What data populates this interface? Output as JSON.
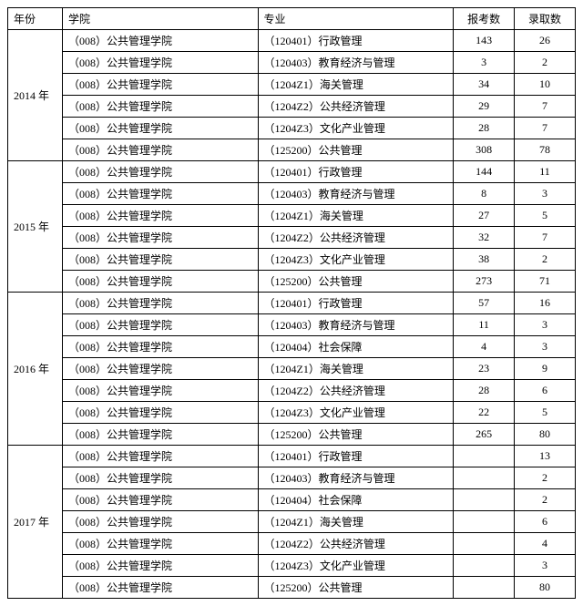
{
  "headers": {
    "year": "年份",
    "dept": "学院",
    "major": "专业",
    "apply": "报考数",
    "admit": "录取数"
  },
  "dept": "（008）公共管理学院",
  "majors": {
    "120401": "（120401）行政管理",
    "120403": "（120403）教育经济与管理",
    "120404": "（120404）社会保障",
    "1204Z1": "（1204Z1）海关管理",
    "1204Z2": "（1204Z2）公共经济管理",
    "1204Z3": "（1204Z3）文化产业管理",
    "125200": "（125200）公共管理"
  },
  "years": [
    {
      "label": "2014 年",
      "rows": [
        {
          "m": "120401",
          "a": "143",
          "d": "26"
        },
        {
          "m": "120403",
          "a": "3",
          "d": "2"
        },
        {
          "m": "1204Z1",
          "a": "34",
          "d": "10"
        },
        {
          "m": "1204Z2",
          "a": "29",
          "d": "7"
        },
        {
          "m": "1204Z3",
          "a": "28",
          "d": "7"
        },
        {
          "m": "125200",
          "a": "308",
          "d": "78"
        }
      ]
    },
    {
      "label": "2015 年",
      "rows": [
        {
          "m": "120401",
          "a": "144",
          "d": "11"
        },
        {
          "m": "120403",
          "a": "8",
          "d": "3"
        },
        {
          "m": "1204Z1",
          "a": "27",
          "d": "5"
        },
        {
          "m": "1204Z2",
          "a": "32",
          "d": "7"
        },
        {
          "m": "1204Z3",
          "a": "38",
          "d": "2"
        },
        {
          "m": "125200",
          "a": "273",
          "d": "71"
        }
      ]
    },
    {
      "label": "2016 年",
      "rows": [
        {
          "m": "120401",
          "a": "57",
          "d": "16"
        },
        {
          "m": "120403",
          "a": "11",
          "d": "3"
        },
        {
          "m": "120404",
          "a": "4",
          "d": "3"
        },
        {
          "m": "1204Z1",
          "a": "23",
          "d": "9"
        },
        {
          "m": "1204Z2",
          "a": "28",
          "d": "6"
        },
        {
          "m": "1204Z3",
          "a": "22",
          "d": "5"
        },
        {
          "m": "125200",
          "a": "265",
          "d": "80"
        }
      ]
    },
    {
      "label": "2017 年",
      "rows": [
        {
          "m": "120401",
          "a": "",
          "d": "13"
        },
        {
          "m": "120403",
          "a": "",
          "d": "2"
        },
        {
          "m": "120404",
          "a": "",
          "d": "2"
        },
        {
          "m": "1204Z1",
          "a": "",
          "d": "6"
        },
        {
          "m": "1204Z2",
          "a": "",
          "d": "4"
        },
        {
          "m": "1204Z3",
          "a": "",
          "d": "3"
        },
        {
          "m": "125200",
          "a": "",
          "d": "80"
        }
      ]
    }
  ]
}
